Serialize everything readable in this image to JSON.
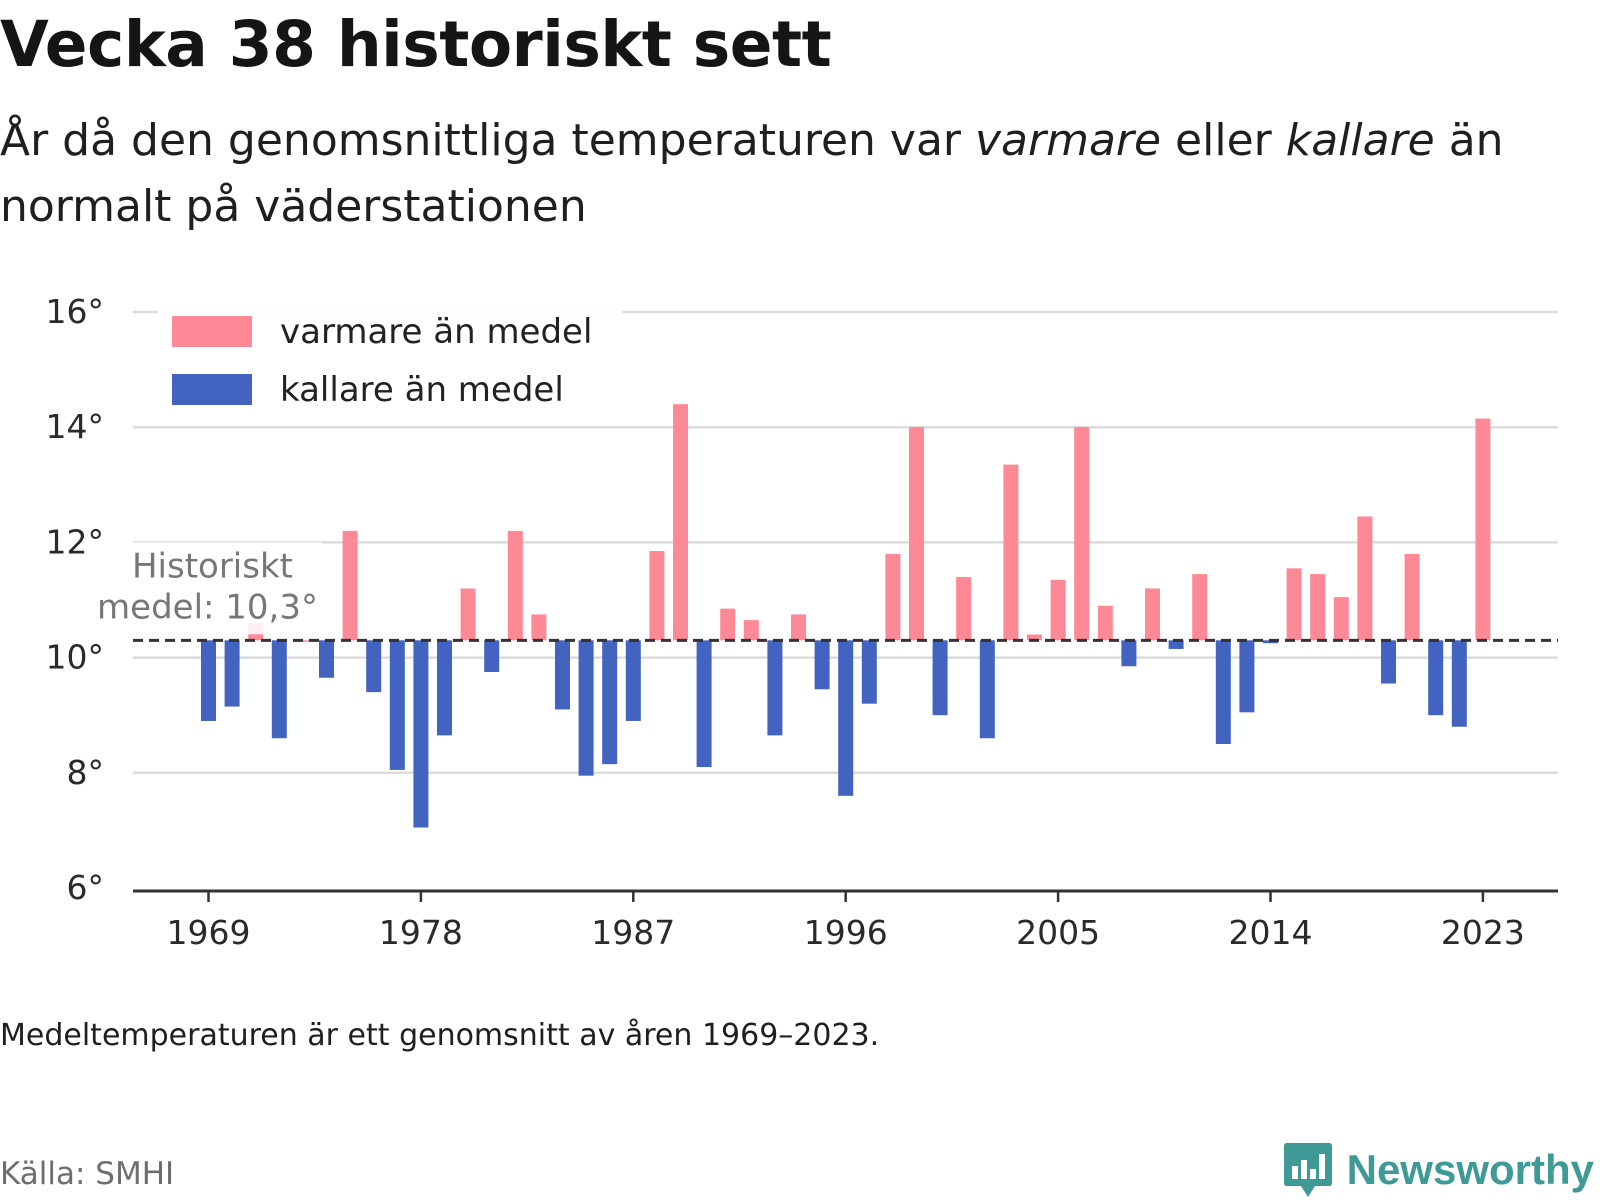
{
  "title": "Vecka 38 historiskt sett",
  "subtitle": {
    "part1": "År då den genomsnittliga temperaturen var ",
    "warm_word": "varmare",
    "part2": " eller ",
    "cold_word": "kallare",
    "part3": " än normalt på väderstationen"
  },
  "note": "Medeltemperaturen är ett genomsnitt av åren 1969–2023.",
  "source": "Källa: SMHI",
  "brand": {
    "name": "Newsworthy",
    "icon": "newsworthy-bar-chart-icon"
  },
  "colors": {
    "warm": "#fd8896",
    "cold": "#4263bf",
    "grid": "#dcdcdc",
    "avg_line": "#333333",
    "axis": "#333333",
    "brand": "#3f9a96"
  },
  "chart_data": {
    "type": "bar",
    "baseline": 10.3,
    "average_label_line1": "Historiskt",
    "average_label_line2": "medel: 10,3°",
    "ylim": [
      6,
      16
    ],
    "yticks": [
      6,
      8,
      10,
      12,
      14,
      16
    ],
    "ytick_labels": [
      "6°",
      "8°",
      "10°",
      "12°",
      "14°",
      "16°"
    ],
    "xticks": [
      1969,
      1978,
      1987,
      1996,
      2005,
      2014,
      2023
    ],
    "xtick_labels": [
      "1969",
      "1978",
      "1987",
      "1996",
      "2005",
      "2014",
      "2023"
    ],
    "grid": true,
    "legend": {
      "position": "top-left",
      "entries": [
        "varmare än medel",
        "kallare än medel"
      ]
    },
    "series": [
      {
        "years": [
          1969,
          1970,
          1971,
          1972,
          1973,
          1974,
          1975,
          1976,
          1977,
          1978,
          1979,
          1980,
          1981,
          1982,
          1983,
          1984,
          1985,
          1986,
          1987,
          1988,
          1989,
          1990,
          1991,
          1992,
          1993,
          1994,
          1995,
          1996,
          1997,
          1998,
          1999,
          2000,
          2001,
          2002,
          2003,
          2004,
          2005,
          2006,
          2007,
          2008,
          2009,
          2010,
          2011,
          2012,
          2013,
          2014,
          2015,
          2016,
          2017,
          2018,
          2019,
          2020,
          2021,
          2022,
          2023
        ],
        "values": [
          8.9,
          9.15,
          10.6,
          8.6,
          10.3,
          9.65,
          12.2,
          9.4,
          8.05,
          7.05,
          8.65,
          11.2,
          9.75,
          12.2,
          10.75,
          9.1,
          7.95,
          8.15,
          8.9,
          11.85,
          14.4,
          8.1,
          10.85,
          10.65,
          8.65,
          10.75,
          9.45,
          7.6,
          9.2,
          11.8,
          14.0,
          9.0,
          11.4,
          8.6,
          13.35,
          10.4,
          11.35,
          14.0,
          10.9,
          9.85,
          11.2,
          10.15,
          11.45,
          8.5,
          9.05,
          10.25,
          11.55,
          11.45,
          11.05,
          12.45,
          9.55,
          11.8,
          9.0,
          8.8,
          14.15
        ]
      }
    ]
  }
}
